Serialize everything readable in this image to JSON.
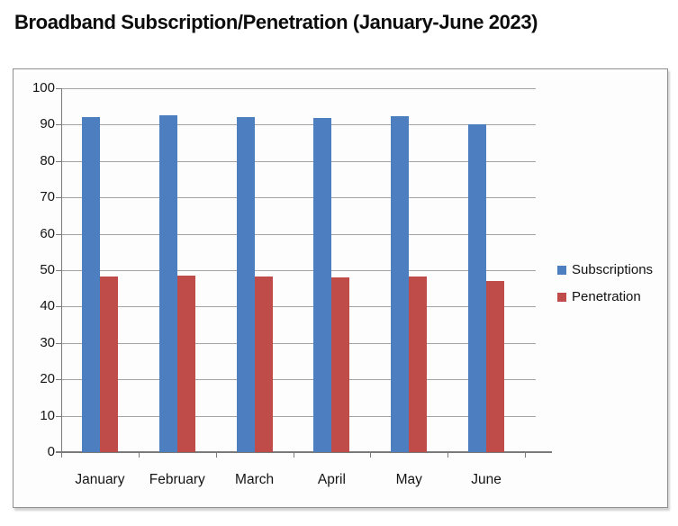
{
  "title": "Broadband Subscription/Penetration (January-June 2023)",
  "chart_data": {
    "type": "bar",
    "title": "Broadband Subscription/Penetration (January-June 2023)",
    "categories": [
      "January",
      "February",
      "March",
      "April",
      "May",
      "June"
    ],
    "series": [
      {
        "name": "Subscriptions",
        "color": "#4d7ebf",
        "values": [
          92.0,
          92.6,
          92.2,
          91.8,
          92.4,
          90.0
        ]
      },
      {
        "name": "Penetration",
        "color": "#bf4c49",
        "values": [
          48.2,
          48.4,
          48.2,
          48.0,
          48.2,
          47.0
        ]
      }
    ],
    "xlabel": "",
    "ylabel": "",
    "ylim": [
      0,
      100
    ],
    "ytick_step": 10,
    "yticks": [
      0,
      10,
      20,
      30,
      40,
      50,
      60,
      70,
      80,
      90,
      100
    ],
    "grid": true,
    "legend_position": "right-middle"
  },
  "colors": {
    "grid": "#a3a3a3",
    "axis": "#7a7a7a",
    "frame_border": "#8f8f8f",
    "frame_background": "#fdfdfd",
    "page_background": "#ffffff",
    "text": "#151515"
  }
}
